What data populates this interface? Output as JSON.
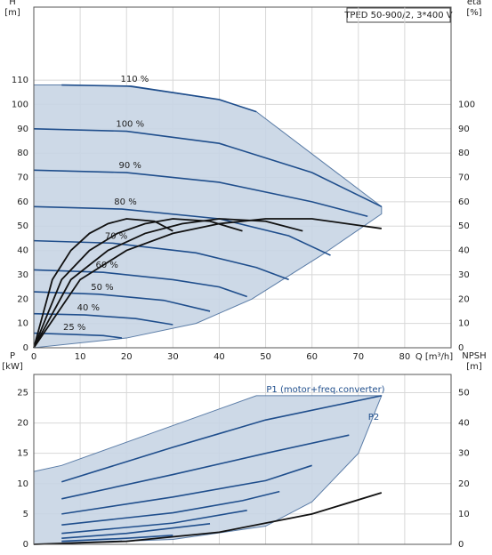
{
  "chart_data": [
    {
      "type": "line",
      "title": "TPED 50-900/2, 3*400 V",
      "ylabel": [
        "H",
        "[m]"
      ],
      "y2label": [
        "eta",
        "[%]"
      ],
      "xlabel": "Q [m³/h]",
      "xlim": [
        0,
        90
      ],
      "xticks": [
        0,
        10,
        20,
        30,
        40,
        50,
        60,
        70,
        80
      ],
      "ylim": [
        0,
        140
      ],
      "yticks": [
        0,
        10,
        20,
        30,
        40,
        50,
        60,
        70,
        80,
        90,
        100,
        110
      ],
      "y2lim": [
        0,
        140
      ],
      "y2ticks": [
        0,
        10,
        20,
        30,
        40,
        50,
        60,
        70,
        80,
        90,
        100
      ],
      "grid": true,
      "envelope": {
        "color": "#c8d5e5",
        "x": [
          0,
          6,
          20,
          40,
          48,
          75,
          75,
          62,
          47,
          35,
          20,
          0
        ],
        "values": [
          108,
          108,
          107.5,
          102,
          97,
          58,
          55,
          38,
          20,
          10,
          4,
          0
        ]
      },
      "series": [
        {
          "name": "110 %",
          "color": "#1f4e8c",
          "x": [
            6,
            21,
            40,
            48
          ],
          "values": [
            108,
            107.5,
            102,
            97
          ]
        },
        {
          "name": "100 %",
          "color": "#1f4e8c",
          "x": [
            0,
            20,
            40,
            60,
            75
          ],
          "values": [
            90,
            89,
            84,
            72,
            58
          ]
        },
        {
          "name": "90 %",
          "color": "#1f4e8c",
          "x": [
            0,
            20,
            40,
            60,
            72
          ],
          "values": [
            73,
            72,
            68,
            60,
            54
          ]
        },
        {
          "name": "80 %",
          "color": "#1f4e8c",
          "x": [
            0,
            19,
            40,
            55,
            64
          ],
          "values": [
            58,
            57,
            53,
            46,
            38
          ]
        },
        {
          "name": "70 %",
          "color": "#1f4e8c",
          "x": [
            0,
            17,
            35,
            48,
            55
          ],
          "values": [
            44,
            43,
            39,
            33,
            28
          ]
        },
        {
          "name": "60 %",
          "color": "#1f4e8c",
          "x": [
            0,
            15,
            30,
            40,
            46
          ],
          "values": [
            32,
            31,
            28,
            25,
            21
          ]
        },
        {
          "name": "50 %",
          "color": "#1f4e8c",
          "x": [
            0,
            14,
            28,
            38
          ],
          "values": [
            23,
            22,
            19.5,
            15
          ]
        },
        {
          "name": "40 %",
          "color": "#1f4e8c",
          "x": [
            0,
            11,
            22,
            30
          ],
          "values": [
            14,
            13.5,
            12,
            9.5
          ]
        },
        {
          "name": "25 %",
          "color": "#1f4e8c",
          "x": [
            0,
            8,
            15,
            19
          ],
          "values": [
            6,
            5.5,
            5,
            4
          ]
        },
        {
          "color": "#111111",
          "axis": "y2",
          "x": [
            0,
            10,
            20,
            30,
            40,
            50,
            60,
            75
          ],
          "values": [
            0,
            28,
            40,
            47,
            51,
            53,
            53,
            49
          ]
        },
        {
          "color": "#111111",
          "axis": "y2",
          "x": [
            0,
            8,
            16,
            24,
            32,
            40,
            50,
            58
          ],
          "values": [
            0,
            28,
            40,
            47,
            51,
            53,
            52,
            48
          ]
        },
        {
          "color": "#111111",
          "axis": "y2",
          "x": [
            0,
            6,
            12,
            18,
            24,
            30,
            38,
            45
          ],
          "values": [
            0,
            28,
            40,
            47,
            51,
            53,
            52,
            48
          ]
        },
        {
          "color": "#111111",
          "axis": "y2",
          "x": [
            0,
            4,
            8,
            12,
            16,
            20,
            26,
            30
          ],
          "values": [
            0,
            28,
            40,
            47,
            51,
            53,
            52,
            48
          ]
        }
      ]
    },
    {
      "type": "line",
      "ylabel": [
        "P",
        "[kW]"
      ],
      "y2label": [
        "NPSH",
        "[m]"
      ],
      "annotations": [
        "P1 (motor+freq.converter)",
        "P2"
      ],
      "xlim": [
        0,
        90
      ],
      "xticks": [
        0,
        10,
        20,
        30,
        40,
        50,
        60,
        70,
        80
      ],
      "ylim": [
        0,
        28
      ],
      "yticks": [
        0,
        5,
        10,
        15,
        20,
        25
      ],
      "y2lim": [
        0,
        56
      ],
      "y2ticks": [
        0,
        10,
        20,
        30,
        40,
        50
      ],
      "grid": true,
      "envelope": {
        "color": "#c8d5e5",
        "x": [
          0,
          6,
          48,
          75,
          70,
          60,
          50,
          30,
          0
        ],
        "values": [
          12,
          13,
          24.5,
          24.5,
          15,
          7,
          3,
          0.8,
          0
        ]
      },
      "series": [
        {
          "color": "#1f4e8c",
          "x": [
            6,
            30,
            50,
            75
          ],
          "values": [
            10.3,
            16,
            20.5,
            24.5
          ]
        },
        {
          "color": "#1f4e8c",
          "x": [
            6,
            30,
            50,
            68
          ],
          "values": [
            7.5,
            11.5,
            15,
            18
          ]
        },
        {
          "color": "#1f4e8c",
          "x": [
            6,
            30,
            50,
            60
          ],
          "values": [
            5,
            7.8,
            10.5,
            13
          ]
        },
        {
          "color": "#1f4e8c",
          "x": [
            6,
            30,
            45,
            53
          ],
          "values": [
            3.2,
            5.2,
            7.2,
            8.7
          ]
        },
        {
          "color": "#1f4e8c",
          "x": [
            6,
            30,
            46
          ],
          "values": [
            1.8,
            3.5,
            5.6
          ]
        },
        {
          "color": "#1f4e8c",
          "x": [
            6,
            20,
            38
          ],
          "values": [
            1,
            1.8,
            3.4
          ]
        },
        {
          "color": "#1f4e8c",
          "x": [
            6,
            20,
            30
          ],
          "values": [
            0.5,
            1,
            1.5
          ]
        },
        {
          "color": "#1f4e8c",
          "x": [
            6,
            19
          ],
          "values": [
            0.2,
            0.5
          ]
        },
        {
          "color": "#111111",
          "axis": "y2",
          "x": [
            0,
            20,
            40,
            60,
            75
          ],
          "values": [
            0,
            1,
            4,
            10,
            17
          ]
        }
      ]
    }
  ]
}
